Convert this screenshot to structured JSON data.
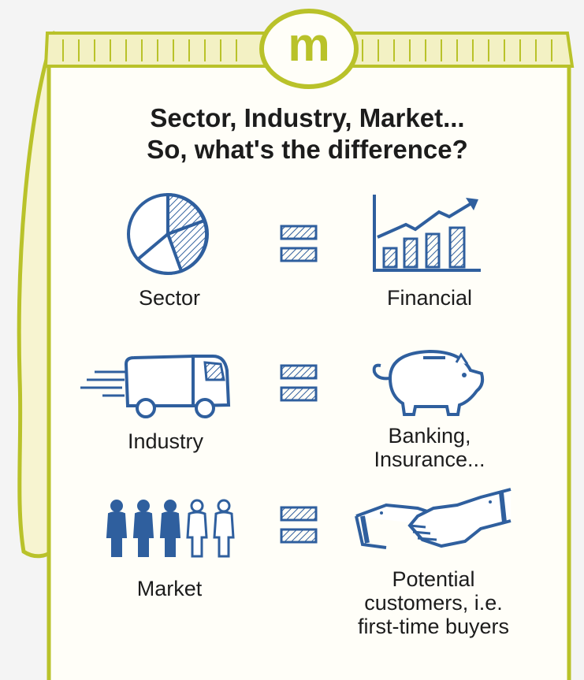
{
  "logo_text": "m",
  "title_line1": "Sector, Industry, Market...",
  "title_line2": "So, what's the difference?",
  "rows": [
    {
      "left_label": "Sector",
      "left_icon": "pie-chart-icon",
      "equals_icon": "equals-icon",
      "right_icon": "bar-chart-growth-icon",
      "right_lines": [
        "Financial"
      ]
    },
    {
      "left_label": "Industry",
      "left_icon": "delivery-truck-icon",
      "equals_icon": "equals-icon",
      "right_icon": "piggy-bank-icon",
      "right_lines": [
        "Banking,",
        "Insurance..."
      ]
    },
    {
      "left_label": "Market",
      "left_icon": "people-group-icon",
      "equals_icon": "equals-icon",
      "right_icon": "handshake-icon",
      "right_lines": [
        "Potential",
        "customers, i.e.",
        "first-time buyers"
      ]
    }
  ],
  "colors": {
    "frame": "#b9c22a",
    "ink": "#2f5f9e",
    "text": "#1c1c1c",
    "paper": "#fffef8"
  }
}
